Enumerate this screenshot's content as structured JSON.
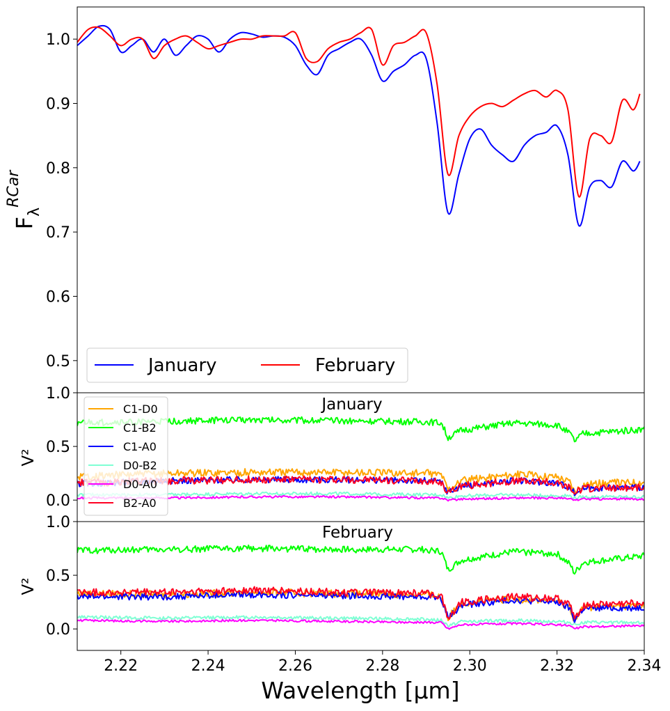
{
  "chart_data": [
    {
      "type": "line",
      "panel": "flux",
      "title": "",
      "ylabel": "F",
      "ylabel_sub": "λ",
      "ylabel_sup": "RCar",
      "xlim": [
        2.21,
        2.34
      ],
      "ylim": [
        0.45,
        1.05
      ],
      "yticks": [
        0.5,
        0.6,
        0.7,
        0.8,
        0.9,
        1.0
      ],
      "ytick_labels": [
        "0.5",
        "0.6",
        "0.7",
        "0.8",
        "0.9",
        "1.0"
      ],
      "grid": false,
      "legend": {
        "placement": "lower-left",
        "columns": 2
      },
      "x": [
        2.21,
        2.2125,
        2.215,
        2.2175,
        2.22,
        2.2225,
        2.225,
        2.2275,
        2.23,
        2.2325,
        2.235,
        2.2375,
        2.24,
        2.2425,
        2.245,
        2.2475,
        2.25,
        2.2525,
        2.255,
        2.2575,
        2.26,
        2.2625,
        2.265,
        2.2675,
        2.27,
        2.2725,
        2.275,
        2.2775,
        2.28,
        2.2825,
        2.285,
        2.2875,
        2.29,
        2.2925,
        2.295,
        2.2975,
        2.3,
        2.3025,
        2.305,
        2.3075,
        2.31,
        2.3125,
        2.315,
        2.3175,
        2.32,
        2.3225,
        2.325,
        2.3275,
        2.33,
        2.3325,
        2.335,
        2.3375,
        2.339
      ],
      "series": [
        {
          "name": "January",
          "color": "#0000ff",
          "values": [
            0.99,
            1.005,
            1.02,
            1.015,
            0.98,
            0.99,
            1.0,
            0.98,
            1.0,
            0.975,
            0.99,
            1.005,
            1.0,
            0.98,
            1.0,
            1.01,
            1.008,
            1.003,
            1.005,
            1.003,
            0.99,
            0.96,
            0.945,
            0.975,
            0.985,
            0.995,
            1.0,
            0.975,
            0.935,
            0.95,
            0.96,
            0.975,
            0.97,
            0.87,
            0.73,
            0.79,
            0.845,
            0.86,
            0.835,
            0.82,
            0.81,
            0.835,
            0.85,
            0.855,
            0.865,
            0.82,
            0.71,
            0.77,
            0.78,
            0.77,
            0.81,
            0.795,
            0.81
          ]
        },
        {
          "name": "February",
          "color": "#ff0000",
          "values": [
            0.995,
            1.015,
            1.018,
            1.005,
            0.99,
            1.0,
            1.0,
            0.97,
            0.99,
            1.0,
            1.005,
            0.995,
            0.985,
            0.99,
            0.995,
            1.0,
            1.0,
            1.005,
            1.005,
            1.005,
            1.01,
            0.97,
            0.965,
            0.985,
            0.995,
            1.0,
            1.01,
            1.015,
            0.96,
            0.99,
            0.995,
            1.005,
            1.01,
            0.93,
            0.79,
            0.85,
            0.88,
            0.895,
            0.9,
            0.895,
            0.905,
            0.915,
            0.92,
            0.91,
            0.92,
            0.89,
            0.755,
            0.845,
            0.85,
            0.84,
            0.905,
            0.89,
            0.915
          ]
        }
      ]
    },
    {
      "type": "line",
      "panel": "vis2-january",
      "title": "January",
      "ylabel": "V²",
      "xlim": [
        2.21,
        2.34
      ],
      "ylim": [
        -0.2,
        1.0
      ],
      "yticks": [
        0.0,
        0.5,
        1.0
      ],
      "ytick_labels": [
        "0.0",
        "0.5",
        "1.0"
      ],
      "grid": false,
      "legend": {
        "placement": "upper-left",
        "columns": 1
      },
      "x_knots": [
        2.21,
        2.23,
        2.25,
        2.27,
        2.29,
        2.2935,
        2.295,
        2.298,
        2.31,
        2.32,
        2.323,
        2.324,
        2.326,
        2.34
      ],
      "series": [
        {
          "name": "C1-D0",
          "color": "#ffa500",
          "values": [
            0.22,
            0.25,
            0.26,
            0.26,
            0.25,
            0.24,
            0.1,
            0.18,
            0.24,
            0.22,
            0.17,
            0.08,
            0.15,
            0.17
          ]
        },
        {
          "name": "C1-B2",
          "color": "#00ff00",
          "values": [
            0.72,
            0.73,
            0.75,
            0.74,
            0.73,
            0.72,
            0.58,
            0.65,
            0.72,
            0.7,
            0.62,
            0.55,
            0.62,
            0.66
          ]
        },
        {
          "name": "C1-A0",
          "color": "#0000ff",
          "values": [
            0.15,
            0.18,
            0.19,
            0.19,
            0.18,
            0.17,
            0.07,
            0.13,
            0.18,
            0.16,
            0.12,
            0.06,
            0.11,
            0.12
          ]
        },
        {
          "name": "D0-B2",
          "color": "#7fffd4",
          "values": [
            0.05,
            0.05,
            0.06,
            0.06,
            0.05,
            0.05,
            0.02,
            0.04,
            0.05,
            0.04,
            0.04,
            0.02,
            0.03,
            0.03
          ]
        },
        {
          "name": "D0-A0",
          "color": "#ff00ff",
          "values": [
            0.02,
            0.02,
            0.03,
            0.03,
            0.02,
            0.02,
            0.0,
            0.01,
            0.02,
            0.02,
            0.01,
            0.0,
            0.01,
            0.01
          ]
        },
        {
          "name": "B2-A0",
          "color": "#ff0022",
          "values": [
            0.16,
            0.18,
            0.19,
            0.19,
            0.18,
            0.17,
            0.07,
            0.13,
            0.18,
            0.16,
            0.12,
            0.06,
            0.11,
            0.12
          ]
        }
      ]
    },
    {
      "type": "line",
      "panel": "vis2-february",
      "title": "February",
      "ylabel": "V²",
      "xlabel": "Wavelength [μm]",
      "xlim": [
        2.21,
        2.34
      ],
      "ylim": [
        -0.2,
        1.0
      ],
      "xticks": [
        2.22,
        2.24,
        2.26,
        2.28,
        2.3,
        2.32,
        2.34
      ],
      "xtick_labels": [
        "2.22",
        "2.24",
        "2.26",
        "2.28",
        "2.30",
        "2.32",
        "2.34"
      ],
      "yticks": [
        0.0,
        0.5,
        1.0
      ],
      "ytick_labels": [
        "0.0",
        "0.5",
        "1.0"
      ],
      "grid": false,
      "x_knots": [
        2.21,
        2.23,
        2.25,
        2.27,
        2.29,
        2.2935,
        2.295,
        2.298,
        2.31,
        2.32,
        2.323,
        2.324,
        2.326,
        2.34
      ],
      "series": [
        {
          "name": "C1-D0",
          "color": "#ffa500",
          "values": [
            0.33,
            0.32,
            0.34,
            0.33,
            0.32,
            0.3,
            0.1,
            0.24,
            0.28,
            0.26,
            0.2,
            0.08,
            0.2,
            0.22
          ]
        },
        {
          "name": "C1-B2",
          "color": "#00ff00",
          "values": [
            0.73,
            0.74,
            0.75,
            0.74,
            0.74,
            0.72,
            0.55,
            0.64,
            0.72,
            0.7,
            0.6,
            0.52,
            0.62,
            0.68
          ]
        },
        {
          "name": "C1-A0",
          "color": "#0000ff",
          "values": [
            0.3,
            0.3,
            0.32,
            0.31,
            0.3,
            0.29,
            0.1,
            0.22,
            0.27,
            0.25,
            0.19,
            0.08,
            0.19,
            0.2
          ]
        },
        {
          "name": "D0-B2",
          "color": "#7fffd4",
          "values": [
            0.11,
            0.1,
            0.11,
            0.1,
            0.09,
            0.08,
            0.03,
            0.07,
            0.08,
            0.07,
            0.06,
            0.04,
            0.06,
            0.06
          ]
        },
        {
          "name": "D0-A0",
          "color": "#ff00ff",
          "values": [
            0.08,
            0.07,
            0.08,
            0.07,
            0.06,
            0.06,
            0.0,
            0.04,
            0.05,
            0.04,
            0.03,
            0.0,
            0.02,
            0.03
          ]
        },
        {
          "name": "B2-A0",
          "color": "#ff0022",
          "values": [
            0.34,
            0.34,
            0.36,
            0.34,
            0.33,
            0.31,
            0.1,
            0.25,
            0.3,
            0.28,
            0.22,
            0.1,
            0.22,
            0.24
          ]
        }
      ]
    }
  ]
}
